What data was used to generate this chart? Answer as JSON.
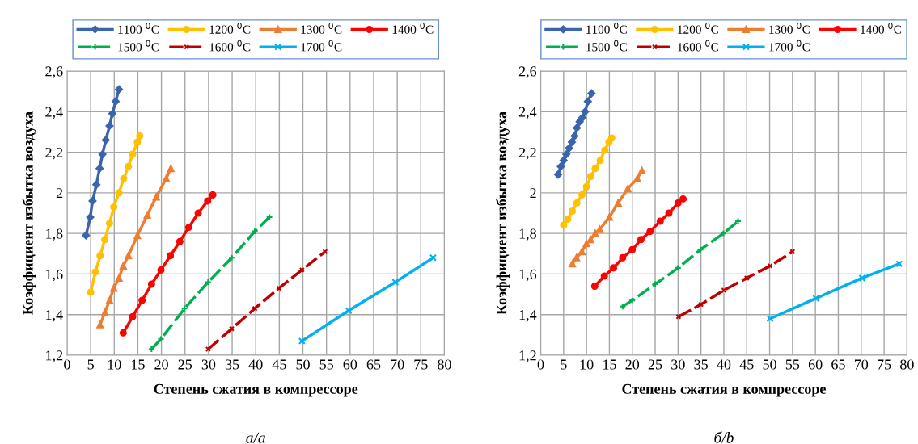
{
  "chart_data": [
    {
      "type": "line",
      "xlabel": "Степень сжатия в компрессоре",
      "ylabel": "Коэффициент избытка воздуха",
      "xlim": [
        0,
        80
      ],
      "xticks": [
        0,
        5,
        10,
        15,
        20,
        25,
        30,
        35,
        40,
        45,
        50,
        55,
        60,
        65,
        70,
        75,
        80
      ],
      "ylim": [
        1.2,
        2.6
      ],
      "yticks": [
        {
          "value": 1.2,
          "label": "1,2"
        },
        {
          "value": 1.4,
          "label": "1,4"
        },
        {
          "value": 1.6,
          "label": "1,6"
        },
        {
          "value": 1.8,
          "label": "1,8"
        },
        {
          "value": 2,
          "label": "2"
        },
        {
          "value": 2.2,
          "label": "2,2"
        },
        {
          "value": 2.4,
          "label": "2,4"
        },
        {
          "value": 2.6,
          "label": "2,6"
        }
      ],
      "grid": true,
      "legend": "top",
      "annotations": [
        "а/a"
      ],
      "series": [
        {
          "name": "1100 $^{0}$C",
          "color": "#3a64ad",
          "marker": "diamond",
          "line_style": "solid",
          "x": [
            4,
            4.9,
            5.4,
            6.2,
            6.9,
            7.5,
            8.2,
            9,
            9.6,
            10.3,
            11
          ],
          "values": [
            1.79,
            1.88,
            1.96,
            2.04,
            2.12,
            2.19,
            2.26,
            2.33,
            2.39,
            2.45,
            2.51
          ]
        },
        {
          "name": "1200 $^{0}$C",
          "color": "#ffc000",
          "marker": "circle",
          "line_style": "solid",
          "x": [
            5,
            6,
            7,
            8,
            9,
            9.9,
            11,
            12,
            13,
            13.9,
            14.9,
            15.4
          ],
          "values": [
            1.51,
            1.61,
            1.69,
            1.77,
            1.85,
            1.93,
            2.0,
            2.07,
            2.13,
            2.19,
            2.25,
            2.28
          ]
        },
        {
          "name": "1300 $^{0}$C",
          "color": "#ed7d31",
          "marker": "triangle",
          "line_style": "solid",
          "x": [
            7,
            8,
            9,
            9.9,
            11,
            11.9,
            13,
            14.9,
            17,
            18.9,
            21,
            22
          ],
          "values": [
            1.35,
            1.41,
            1.47,
            1.53,
            1.58,
            1.64,
            1.69,
            1.79,
            1.89,
            1.98,
            2.07,
            2.12
          ]
        },
        {
          "name": "1400 $^{0}$C",
          "color": "#ff0000",
          "marker": "circle",
          "line_style": "solid",
          "x": [
            11.9,
            13.9,
            15.9,
            17.9,
            19.9,
            21.9,
            23.9,
            25.8,
            27.8,
            29.8,
            30.9
          ],
          "values": [
            1.31,
            1.39,
            1.47,
            1.55,
            1.62,
            1.69,
            1.76,
            1.83,
            1.9,
            1.96,
            1.99
          ]
        },
        {
          "name": "1500 $^{0}$C",
          "color": "#00b050",
          "marker": "cross",
          "line_style": "dashed",
          "x": [
            17.9,
            19.9,
            24.9,
            29.9,
            34.9,
            39.8,
            42.9
          ],
          "values": [
            1.23,
            1.28,
            1.43,
            1.56,
            1.68,
            1.81,
            1.88
          ]
        },
        {
          "name": "1600 $^{0}$C",
          "color": "#c00000",
          "marker": "star",
          "line_style": "dashed",
          "x": [
            29.9,
            34.9,
            39.8,
            44.9,
            49.8,
            54.7
          ],
          "values": [
            1.23,
            1.33,
            1.43,
            1.53,
            1.62,
            1.71
          ]
        },
        {
          "name": "1700 $^{0}$C",
          "color": "#00b0f0",
          "marker": "x",
          "line_style": "solid",
          "x": [
            49.8,
            59.7,
            69.6,
            77.6
          ],
          "values": [
            1.27,
            1.42,
            1.56,
            1.68
          ]
        }
      ]
    },
    {
      "type": "line",
      "xlabel": "Степень сжатия в компрессоре",
      "ylabel": "Коэффициент избытка воздуха",
      "xlim": [
        0,
        80
      ],
      "xticks": [
        0,
        5,
        10,
        15,
        20,
        25,
        30,
        35,
        40,
        45,
        50,
        55,
        60,
        65,
        70,
        75,
        80
      ],
      "ylim": [
        1.2,
        2.6
      ],
      "yticks": [
        {
          "value": 1.2,
          "label": "1,2"
        },
        {
          "value": 1.4,
          "label": "1,4"
        },
        {
          "value": 1.6,
          "label": "1,6"
        },
        {
          "value": 1.8,
          "label": "1,8"
        },
        {
          "value": 2,
          "label": "2"
        },
        {
          "value": 2.2,
          "label": "2,2"
        },
        {
          "value": 2.4,
          "label": "2,4"
        },
        {
          "value": 2.6,
          "label": "2,6"
        }
      ],
      "grid": true,
      "legend": "top",
      "annotations": [
        "б/b"
      ],
      "series": [
        {
          "name": "1100 $^{0}$C",
          "color": "#3a64ad",
          "marker": "diamond",
          "line_style": "solid",
          "x": [
            3.8,
            4.4,
            5,
            5.6,
            6.2,
            6.8,
            7.4,
            7.9,
            8.5,
            9.1,
            9.7,
            10.3,
            11.1
          ],
          "values": [
            2.09,
            2.13,
            2.16,
            2.19,
            2.22,
            2.25,
            2.28,
            2.32,
            2.35,
            2.37,
            2.4,
            2.45,
            2.49
          ]
        },
        {
          "name": "1200 $^{0}$C",
          "color": "#ffc000",
          "marker": "circle",
          "line_style": "solid",
          "x": [
            5,
            5.9,
            6.9,
            7.9,
            9,
            10,
            10.9,
            11.9,
            13,
            14,
            14.9,
            15.5
          ],
          "values": [
            1.84,
            1.87,
            1.91,
            1.95,
            1.99,
            2.03,
            2.08,
            2.12,
            2.16,
            2.21,
            2.25,
            2.27
          ]
        },
        {
          "name": "1300 $^{0}$C",
          "color": "#ed7d31",
          "marker": "triangle",
          "line_style": "solid",
          "x": [
            6.9,
            7.8,
            9,
            10,
            10.9,
            11.9,
            12.9,
            15,
            16.9,
            19,
            21.1,
            22.1
          ],
          "values": [
            1.65,
            1.68,
            1.71,
            1.75,
            1.77,
            1.8,
            1.82,
            1.88,
            1.95,
            2.02,
            2.07,
            2.11
          ]
        },
        {
          "name": "1400 $^{0}$C",
          "color": "#ff0000",
          "marker": "circle",
          "line_style": "solid",
          "x": [
            11.8,
            13.9,
            15.9,
            17.9,
            20,
            21.9,
            23.9,
            26.1,
            28,
            30,
            31.1
          ],
          "values": [
            1.54,
            1.59,
            1.63,
            1.68,
            1.72,
            1.77,
            1.81,
            1.86,
            1.9,
            1.95,
            1.97
          ]
        },
        {
          "name": "1500 $^{0}$C",
          "color": "#00b050",
          "marker": "cross",
          "line_style": "dashed",
          "x": [
            17.9,
            20,
            25,
            30,
            34.9,
            39.9,
            43.1
          ],
          "values": [
            1.44,
            1.47,
            1.55,
            1.63,
            1.72,
            1.8,
            1.86
          ]
        },
        {
          "name": "1600 $^{0}$C",
          "color": "#c00000",
          "marker": "star",
          "line_style": "dashed",
          "x": [
            30.1,
            35,
            40,
            45,
            50.1,
            55
          ],
          "values": [
            1.39,
            1.45,
            1.52,
            1.58,
            1.64,
            1.71
          ]
        },
        {
          "name": "1700 $^{0}$C",
          "color": "#00b0f0",
          "marker": "x",
          "line_style": "solid",
          "x": [
            50.1,
            60.1,
            70.2,
            78.3
          ],
          "values": [
            1.38,
            1.48,
            1.58,
            1.65
          ]
        }
      ]
    }
  ]
}
